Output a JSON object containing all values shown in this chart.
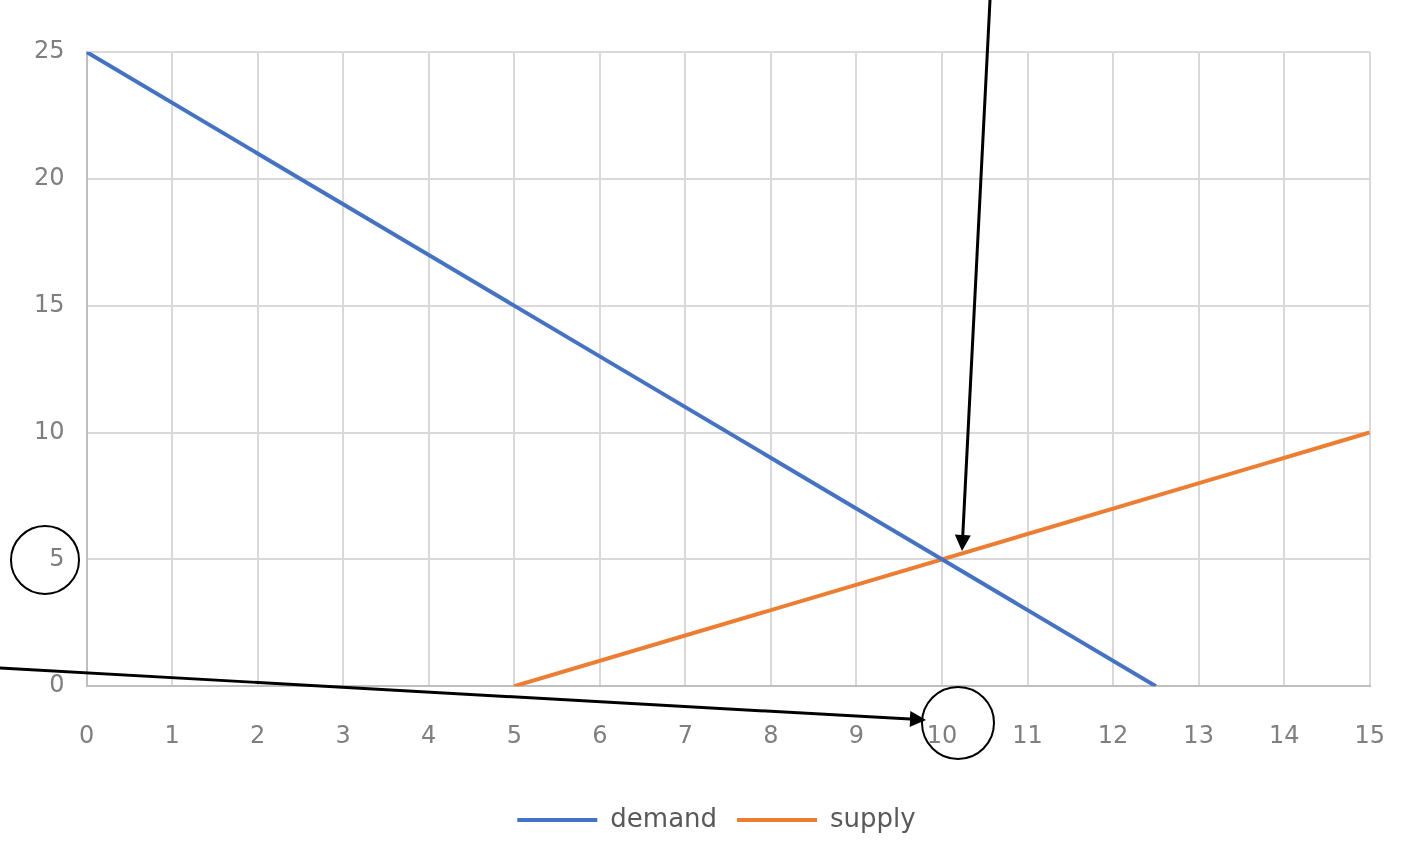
{
  "chart_data": {
    "type": "line",
    "series": [
      {
        "name": "demand",
        "color": "#4472c4",
        "x": [
          0,
          12.5
        ],
        "values": [
          25,
          0
        ]
      },
      {
        "name": "supply",
        "color": "#ed7d31",
        "x": [
          5,
          15
        ],
        "values": [
          0,
          10
        ]
      }
    ],
    "xlim": [
      0,
      15
    ],
    "xticks": [
      0,
      1,
      2,
      3,
      4,
      5,
      6,
      7,
      8,
      9,
      10,
      11,
      12,
      13,
      14,
      15
    ],
    "ylim": [
      0,
      25
    ],
    "yticks": [
      0,
      5,
      10,
      15,
      20,
      25
    ],
    "grid": true,
    "legend": "bottom",
    "marker": "none",
    "line_style": "solid"
  }
}
